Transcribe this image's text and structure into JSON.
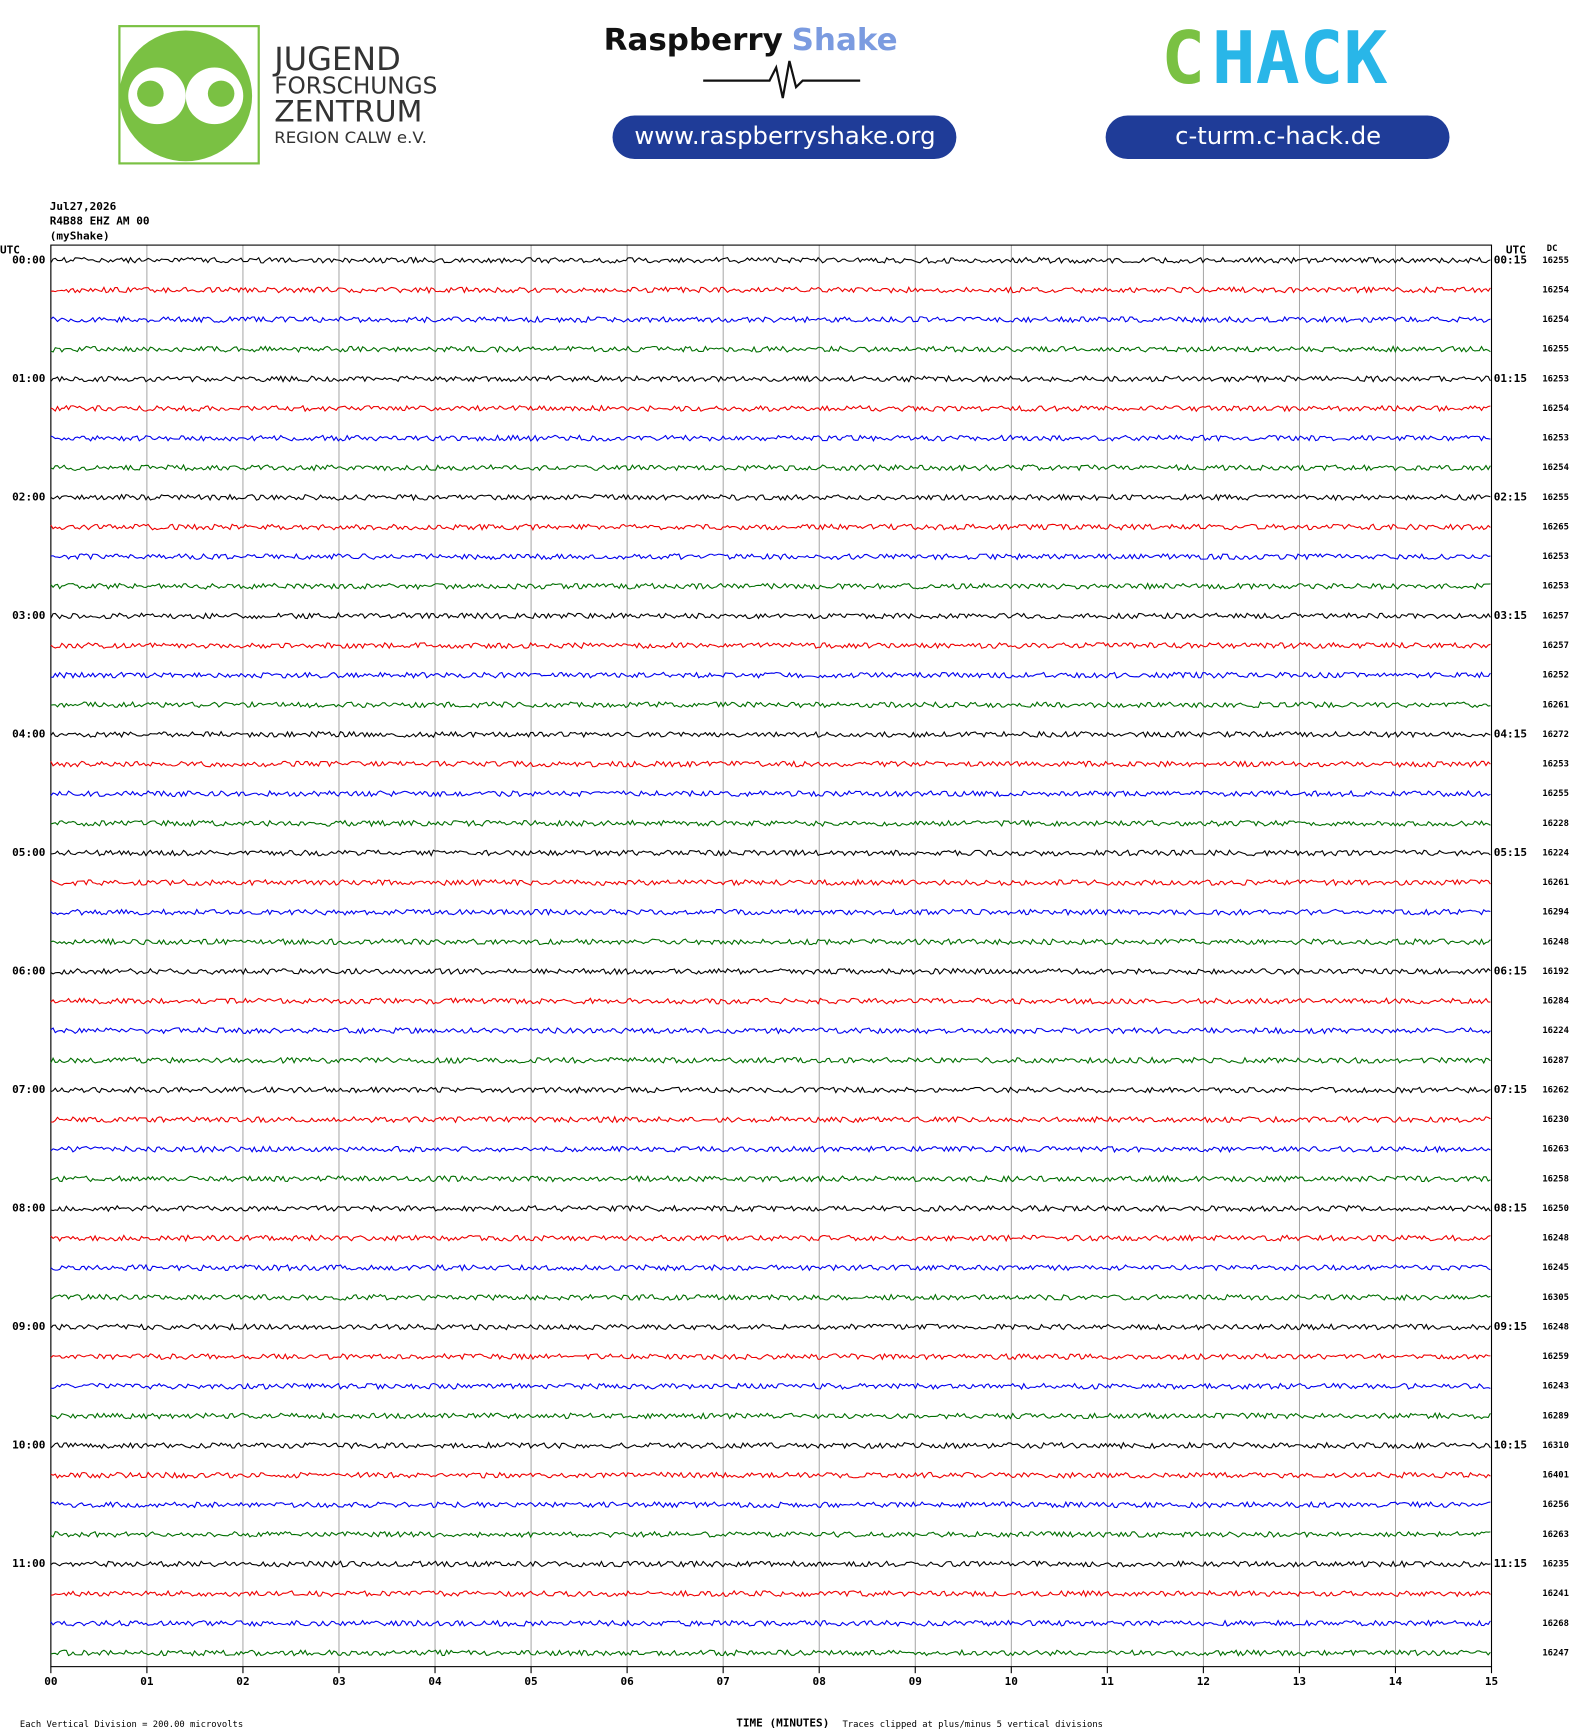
{
  "header": {
    "jfz_lines": [
      "JUGEND",
      "FORSCHUNGS",
      "ZENTRUM",
      "REGION CALW e.V."
    ],
    "rs_brand_1": "Raspberry",
    "rs_brand_2": "Shake",
    "rs_url": "www.raspberryshake.org",
    "chack_1": "C",
    "chack_2": "HACK",
    "chack_url": "c-turm.c-hack.de"
  },
  "chart_data": {
    "type": "helicorder",
    "info": [
      "Jul27,2026",
      "R4B88 EHZ AM 00",
      "(myShake)"
    ],
    "left_axis_label": "UTC",
    "right_axis_label": "UTC",
    "dc_label": "DC",
    "trace_colors": [
      "#000000",
      "#ee0000",
      "#0000ee",
      "#006e00"
    ],
    "row_labels_left": [
      "00:00",
      null,
      null,
      null,
      "01:00",
      null,
      null,
      null,
      "02:00",
      null,
      null,
      null,
      "03:00",
      null,
      null,
      null,
      "04:00",
      null,
      null,
      null,
      "05:00",
      null,
      null,
      null,
      "06:00",
      null,
      null,
      null,
      "07:00",
      null,
      null,
      null,
      "08:00",
      null,
      null,
      null,
      "09:00",
      null,
      null,
      null,
      "10:00",
      null,
      null,
      null,
      "11:00",
      null,
      null,
      null
    ],
    "row_labels_right": [
      "00:15",
      null,
      null,
      null,
      "01:15",
      null,
      null,
      null,
      "02:15",
      null,
      null,
      null,
      "03:15",
      null,
      null,
      null,
      "04:15",
      null,
      null,
      null,
      "05:15",
      null,
      null,
      null,
      "06:15",
      null,
      null,
      null,
      "07:15",
      null,
      null,
      null,
      "08:15",
      null,
      null,
      null,
      "09:15",
      null,
      null,
      null,
      "10:15",
      null,
      null,
      null,
      "11:15",
      null,
      null,
      null
    ],
    "dc": [
      "16255",
      "16254",
      "16254",
      "16255",
      "16253",
      "16254",
      "16253",
      "16254",
      "16255",
      "16265",
      "16253",
      "16253",
      "16257",
      "16257",
      "16252",
      "16261",
      "16272",
      "16253",
      "16255",
      "16228",
      "16224",
      "16261",
      "16294",
      "16248",
      "16192",
      "16284",
      "16224",
      "16287",
      "16262",
      "16230",
      "16263",
      "16258",
      "16250",
      "16248",
      "16245",
      "16305",
      "16248",
      "16259",
      "16243",
      "16289",
      "16310",
      "16401",
      "16256",
      "16263",
      "16235",
      "16241",
      "16268",
      "16247"
    ],
    "xlim": [
      0,
      15
    ],
    "xticks": [
      {
        "value": 0,
        "label": "00"
      },
      {
        "value": 1,
        "label": "01"
      },
      {
        "value": 2,
        "label": "02"
      },
      {
        "value": 3,
        "label": "03"
      },
      {
        "value": 4,
        "label": "04"
      },
      {
        "value": 5,
        "label": "05"
      },
      {
        "value": 6,
        "label": "06"
      },
      {
        "value": 7,
        "label": "07"
      },
      {
        "value": 8,
        "label": "08"
      },
      {
        "value": 9,
        "label": "09"
      },
      {
        "value": 10,
        "label": "10"
      },
      {
        "value": 11,
        "label": "11"
      },
      {
        "value": 12,
        "label": "12"
      },
      {
        "value": 13,
        "label": "13"
      },
      {
        "value": 14,
        "label": "14"
      },
      {
        "value": 15,
        "label": "15"
      }
    ],
    "xlabel": "TIME (MINUTES)",
    "footer_left": "Each Vertical Division =  200.00 microvolts",
    "footer_right": "Traces clipped at plus/minus 5 vertical divisions"
  }
}
